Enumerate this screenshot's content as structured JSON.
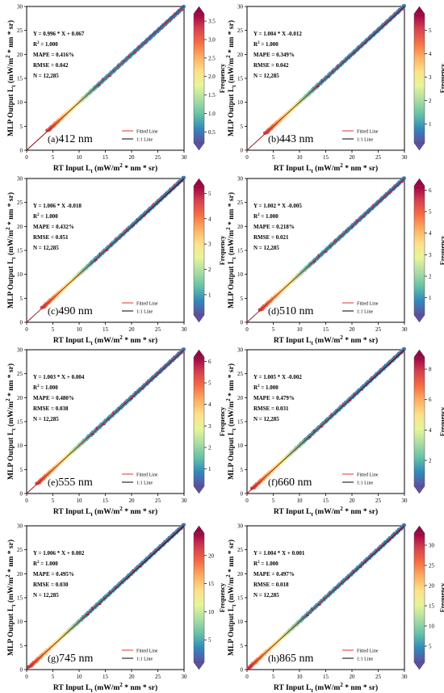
{
  "figure": {
    "x_axis_label_parts": [
      "RT Input L",
      "t",
      " (mW/m",
      "2",
      " * nm * sr)"
    ],
    "y_axis_label_parts": [
      "MLP Output L",
      "t",
      " (mW/m",
      "2",
      " * nm * sr)"
    ],
    "colorbar_label": "Frequency",
    "legend": {
      "fitted": "Fitted Line",
      "identity": "1:1 Line"
    },
    "colors": {
      "fitted": "#e03030",
      "identity": "#000000"
    },
    "colormap": [
      "#5e4fa2",
      "#3288bd",
      "#66c2a5",
      "#abdda4",
      "#e6f598",
      "#fee08b",
      "#fdae61",
      "#f46d43",
      "#d53e4f",
      "#9e0142"
    ]
  },
  "chart_data": [
    {
      "type": "scatter",
      "panel": "(a)",
      "wavelength": "412 nm",
      "stats": [
        "Y = 0.996 * X + 0.067",
        "R2 = 1.000",
        "MAPE = 0.416%",
        "RMSE = 0.042",
        "N = 12,285"
      ],
      "xlim": [
        0,
        30
      ],
      "ylim": [
        0,
        30
      ],
      "xticks": [
        0,
        5,
        10,
        15,
        20,
        25,
        30
      ],
      "yticks": [
        0,
        5,
        10,
        15,
        20,
        25,
        30
      ],
      "fit": {
        "slope": 0.996,
        "intercept": 0.067
      },
      "data_range": [
        4,
        30
      ],
      "colorbar": {
        "ticks": [
          0.5,
          1.0,
          1.5,
          2.0,
          2.5,
          3.0,
          3.5
        ],
        "labels": [
          "0.5",
          "1.0",
          "1.5",
          "2.0",
          "2.5",
          "3.0",
          "3.5"
        ],
        "min": 0.2,
        "max": 3.7
      }
    },
    {
      "type": "scatter",
      "panel": "(b)",
      "wavelength": "443 nm",
      "stats": [
        "Y = 1.004 * X -0.012",
        "R2 = 1.000",
        "MAPE = 0.349%",
        "RMSE = 0.042",
        "N = 12,285"
      ],
      "xlim": [
        0,
        30
      ],
      "ylim": [
        0,
        30
      ],
      "xticks": [
        0,
        5,
        10,
        15,
        20,
        25,
        30
      ],
      "yticks": [
        0,
        5,
        10,
        15,
        20,
        25,
        30
      ],
      "fit": {
        "slope": 1.004,
        "intercept": -0.012
      },
      "data_range": [
        3.5,
        30
      ],
      "colorbar": {
        "ticks": [
          1,
          2,
          3,
          4,
          5
        ],
        "labels": [
          "1",
          "2",
          "3",
          "4",
          "5"
        ],
        "min": 0.2,
        "max": 5.7
      }
    },
    {
      "type": "scatter",
      "panel": "(c)",
      "wavelength": "490 nm",
      "stats": [
        "Y = 1.006 * X -0.018",
        "R2 = 1.000",
        "MAPE = 0.432%",
        "RMSE = 0.051",
        "N = 12,285"
      ],
      "xlim": [
        0,
        30
      ],
      "ylim": [
        0,
        30
      ],
      "xticks": [
        0,
        5,
        10,
        15,
        20,
        25,
        30
      ],
      "yticks": [
        0,
        5,
        10,
        15,
        20,
        25,
        30
      ],
      "fit": {
        "slope": 1.006,
        "intercept": -0.018
      },
      "data_range": [
        3,
        30
      ],
      "colorbar": {
        "ticks": [
          1,
          2,
          3,
          4,
          5
        ],
        "labels": [
          "1",
          "2",
          "3",
          "4",
          "5"
        ],
        "min": 0.2,
        "max": 5.3
      }
    },
    {
      "type": "scatter",
      "panel": "(d)",
      "wavelength": "510 nm",
      "stats": [
        "Y = 1.002 * X -0.005",
        "R2 = 1.000",
        "MAPE = 0.218%",
        "RMSE = 0.021",
        "N = 12,285"
      ],
      "xlim": [
        0,
        30
      ],
      "ylim": [
        0,
        30
      ],
      "xticks": [
        0,
        5,
        10,
        15,
        20,
        25,
        30
      ],
      "yticks": [
        0,
        5,
        10,
        15,
        20,
        25,
        30
      ],
      "fit": {
        "slope": 1.002,
        "intercept": -0.005
      },
      "data_range": [
        2.5,
        30
      ],
      "colorbar": {
        "ticks": [
          1,
          2,
          3,
          4,
          5,
          6
        ],
        "labels": [
          "1",
          "2",
          "3",
          "4",
          "5",
          "6"
        ],
        "min": 0.2,
        "max": 6.2
      }
    },
    {
      "type": "scatter",
      "panel": "(e)",
      "wavelength": "555 nm",
      "stats": [
        "Y = 1.003 * X + 0.004",
        "R2 = 1.000",
        "MAPE = 0.480%",
        "RMSE = 0.038",
        "N = 12,285"
      ],
      "xlim": [
        0,
        30
      ],
      "ylim": [
        0,
        30
      ],
      "xticks": [
        0,
        5,
        10,
        15,
        20,
        25,
        30
      ],
      "yticks": [
        0,
        5,
        10,
        15,
        20,
        25,
        30
      ],
      "fit": {
        "slope": 1.003,
        "intercept": 0.004
      },
      "data_range": [
        2,
        30
      ],
      "colorbar": {
        "ticks": [
          1,
          2,
          3,
          4,
          5,
          6
        ],
        "labels": [
          "1",
          "2",
          "3",
          "4",
          "5",
          "6"
        ],
        "min": 0.2,
        "max": 6.2
      }
    },
    {
      "type": "scatter",
      "panel": "(f)",
      "wavelength": "660 nm",
      "stats": [
        "Y = 1.005 * X -0.002",
        "R2 = 1.000",
        "MAPE = 0.479%",
        "RMSE = 0.031",
        "N = 12,285"
      ],
      "xlim": [
        0,
        30
      ],
      "ylim": [
        0,
        30
      ],
      "xticks": [
        0,
        5,
        10,
        15,
        20,
        25,
        30
      ],
      "yticks": [
        0,
        5,
        10,
        15,
        20,
        25,
        30
      ],
      "fit": {
        "slope": 1.005,
        "intercept": -0.002
      },
      "data_range": [
        1,
        30
      ],
      "colorbar": {
        "ticks": [
          2,
          4,
          6,
          8
        ],
        "labels": [
          "2",
          "4",
          "6",
          "8"
        ],
        "min": 0.3,
        "max": 8.8
      }
    },
    {
      "type": "scatter",
      "panel": "(g)",
      "wavelength": "745 nm",
      "stats": [
        "Y = 1.006 * X + 0.002",
        "R2 = 1.000",
        "MAPE = 0.495%",
        "RMSE = 0.030",
        "N = 12,285"
      ],
      "xlim": [
        0,
        30
      ],
      "ylim": [
        0,
        30
      ],
      "xticks": [
        0,
        5,
        10,
        15,
        20,
        25,
        30
      ],
      "yticks": [
        0,
        5,
        10,
        15,
        20,
        25,
        30
      ],
      "fit": {
        "slope": 1.006,
        "intercept": 0.002
      },
      "data_range": [
        0.5,
        30
      ],
      "colorbar": {
        "ticks": [
          5,
          10,
          15,
          20
        ],
        "labels": [
          "5",
          "10",
          "15",
          "20"
        ],
        "min": 1,
        "max": 24
      }
    },
    {
      "type": "scatter",
      "panel": "(h)",
      "wavelength": "865 nm",
      "stats": [
        "Y = 1.004 * X + 0.001",
        "R2 = 1.000",
        "MAPE = 0.497%",
        "RMSE = 0.018",
        "N = 12,285"
      ],
      "xlim": [
        0,
        30
      ],
      "ylim": [
        0,
        30
      ],
      "xticks": [
        0,
        5,
        10,
        15,
        20,
        25,
        30
      ],
      "yticks": [
        0,
        5,
        10,
        15,
        20,
        25,
        30
      ],
      "fit": {
        "slope": 1.004,
        "intercept": 0.001
      },
      "data_range": [
        0.3,
        30
      ],
      "colorbar": {
        "ticks": [
          5,
          10,
          15,
          20,
          25,
          30
        ],
        "labels": [
          "5",
          "10",
          "15",
          "20",
          "25",
          "30"
        ],
        "min": 1,
        "max": 33
      }
    }
  ]
}
